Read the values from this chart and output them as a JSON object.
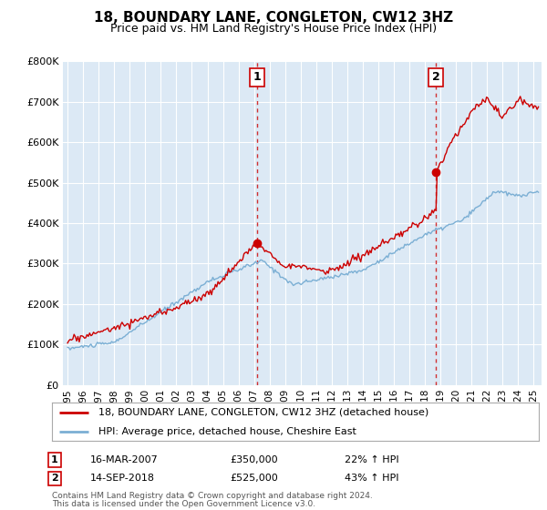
{
  "title": "18, BOUNDARY LANE, CONGLETON, CW12 3HZ",
  "subtitle": "Price paid vs. HM Land Registry's House Price Index (HPI)",
  "legend_line1": "18, BOUNDARY LANE, CONGLETON, CW12 3HZ (detached house)",
  "legend_line2": "HPI: Average price, detached house, Cheshire East",
  "annotation1_label": "1",
  "annotation1_date": "16-MAR-2007",
  "annotation1_price": "£350,000",
  "annotation1_hpi": "22% ↑ HPI",
  "annotation1_year": 2007.21,
  "annotation1_value": 350000,
  "annotation2_label": "2",
  "annotation2_date": "14-SEP-2018",
  "annotation2_price": "£525,000",
  "annotation2_hpi": "43% ↑ HPI",
  "annotation2_year": 2018.71,
  "annotation2_value": 525000,
  "footer1": "Contains HM Land Registry data © Crown copyright and database right 2024.",
  "footer2": "This data is licensed under the Open Government Licence v3.0.",
  "ylim": [
    0,
    800000
  ],
  "yticks": [
    0,
    100000,
    200000,
    300000,
    400000,
    500000,
    600000,
    700000,
    800000
  ],
  "ytick_labels": [
    "£0",
    "£100K",
    "£200K",
    "£300K",
    "£400K",
    "£500K",
    "£600K",
    "£700K",
    "£800K"
  ],
  "hpi_color": "#7bafd4",
  "price_color": "#cc0000",
  "dashed_line_color": "#cc0000",
  "background_color": "#ffffff",
  "plot_bg_color": "#dce9f5"
}
